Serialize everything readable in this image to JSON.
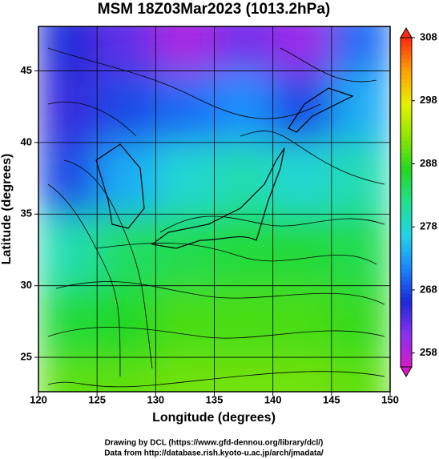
{
  "chart_data": {
    "type": "field",
    "title": "MSM 18Z03Mar2023 (1013.2hPa)",
    "x_label": "Longitude (degrees)",
    "y_label": "Latitude  (degrees)",
    "xlim": [
      120,
      150
    ],
    "xticks": [
      120,
      125,
      130,
      135,
      140,
      145,
      150
    ],
    "ylim": [
      22.6,
      48.1
    ],
    "yticks": [
      25,
      30,
      35,
      40,
      45
    ],
    "grid": true,
    "field": {
      "x": [
        122.5,
        127.5,
        132.5,
        137.5,
        142.5,
        147.5
      ],
      "y": [
        47.5,
        42.5,
        37.5,
        32.5,
        27.5,
        22.5
      ],
      "values": [
        [
          266,
          263,
          259,
          262,
          260,
          270
        ],
        [
          265,
          268,
          270,
          272,
          268,
          274
        ],
        [
          268,
          274,
          278,
          280,
          278,
          280
        ],
        [
          280,
          284,
          285,
          286,
          286,
          285
        ],
        [
          286,
          287,
          289,
          289,
          289,
          288
        ],
        [
          290,
          290,
          291,
          291,
          291,
          290
        ]
      ]
    },
    "colormap": [
      "#d818c8",
      "#8a30f0",
      "#1a2ad8",
      "#1a86ff",
      "#20d4e8",
      "#20e090",
      "#22d822",
      "#8ee600",
      "#e6f000",
      "#ffa000",
      "#ff2a10"
    ],
    "clim": [
      255.8,
      308
    ],
    "cticks": [
      258,
      268,
      278,
      288,
      298,
      308
    ],
    "footer": [
      "Drawing by DCL (https://www.gfd-dennou.org/library/dcl/)",
      "Data from http://database.rish.kyoto-u.ac.jp/arch/jmadata/"
    ]
  }
}
